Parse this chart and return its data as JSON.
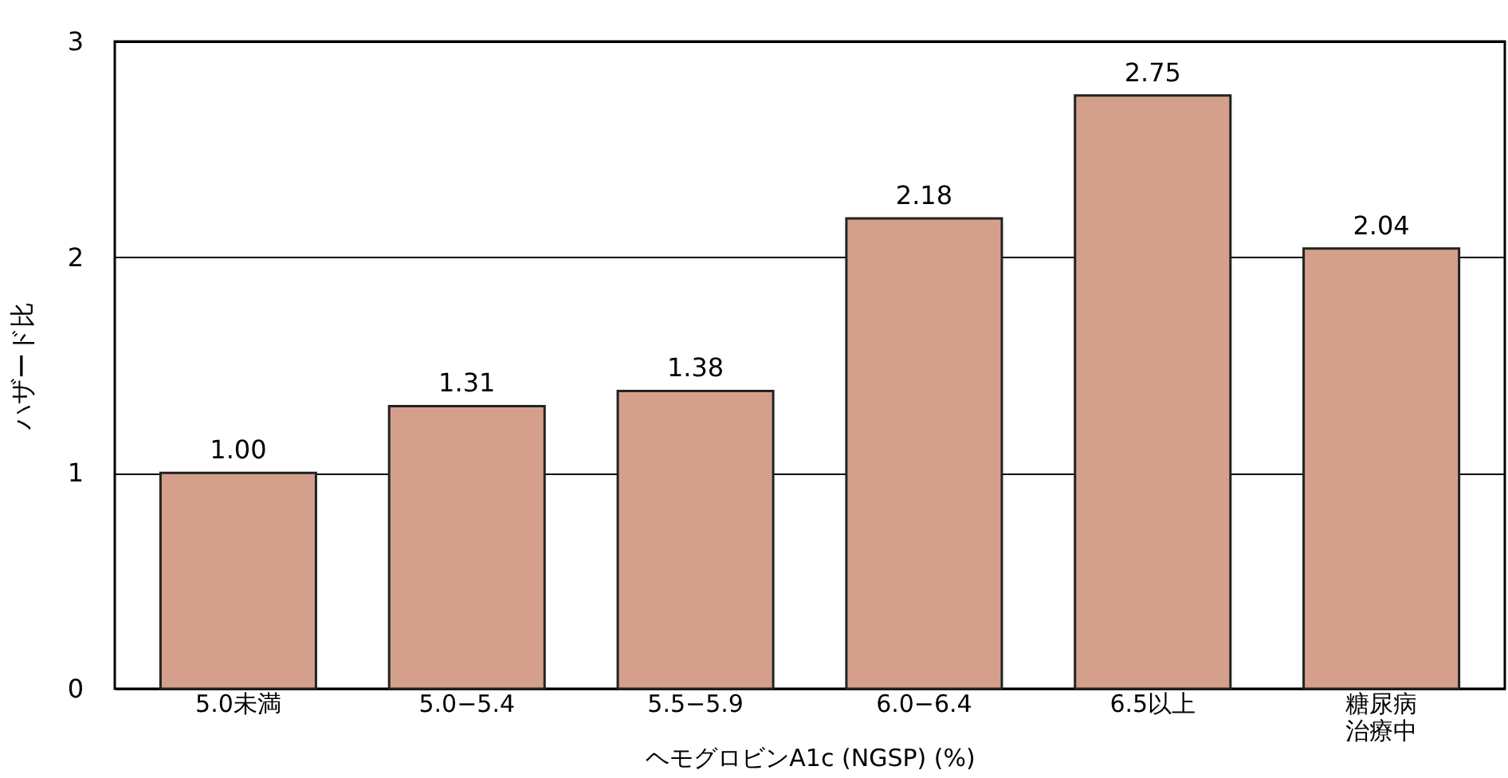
{
  "chart_data": {
    "type": "bar",
    "xlabel": "ヘモグロビンA1c (NGSP) (%)",
    "ylabel": "ハザード比",
    "categories": [
      "5.0未満",
      "5.0−5.4",
      "5.5−5.9",
      "6.0−6.4",
      "6.5以上",
      "糖尿病治療中"
    ],
    "values": [
      1.0,
      1.31,
      1.38,
      2.18,
      2.75,
      2.04
    ],
    "value_labels": [
      "1.00",
      "1.31",
      "1.38",
      "2.18",
      "2.75",
      "2.04"
    ],
    "color": "#d4a08c",
    "ylim": [
      0,
      3
    ],
    "yticks": [
      0,
      1,
      2,
      3
    ],
    "grid": "y"
  }
}
